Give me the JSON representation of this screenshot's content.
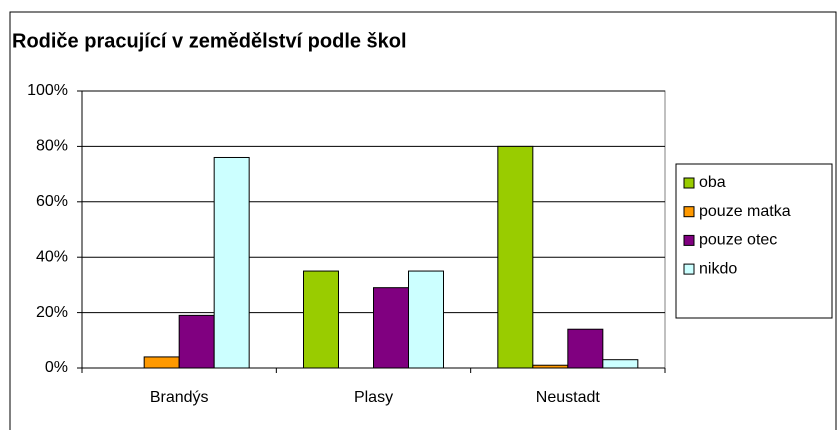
{
  "chart_data": {
    "type": "bar",
    "title": "Rodiče pracující v zemědělství podle škol",
    "categories": [
      "Brandýs",
      "Plasy",
      "Neustadt"
    ],
    "series": [
      {
        "name": "oba",
        "color": "#99cc00",
        "values": [
          0,
          35,
          80
        ]
      },
      {
        "name": "pouze matka",
        "color": "#ff9900",
        "values": [
          4,
          0,
          1
        ]
      },
      {
        "name": "pouze otec",
        "color": "#800080",
        "values": [
          19,
          29,
          14
        ]
      },
      {
        "name": "nikdo",
        "color": "#ccffff",
        "values": [
          76,
          35,
          3
        ]
      }
    ],
    "ylim": [
      0,
      100
    ],
    "yticks": [
      {
        "value": 0,
        "label": "0%"
      },
      {
        "value": 20,
        "label": "20%"
      },
      {
        "value": 40,
        "label": "40%"
      },
      {
        "value": 60,
        "label": "60%"
      },
      {
        "value": 80,
        "label": "80%"
      },
      {
        "value": 100,
        "label": "100%"
      }
    ],
    "grid": true,
    "legend": "right"
  }
}
